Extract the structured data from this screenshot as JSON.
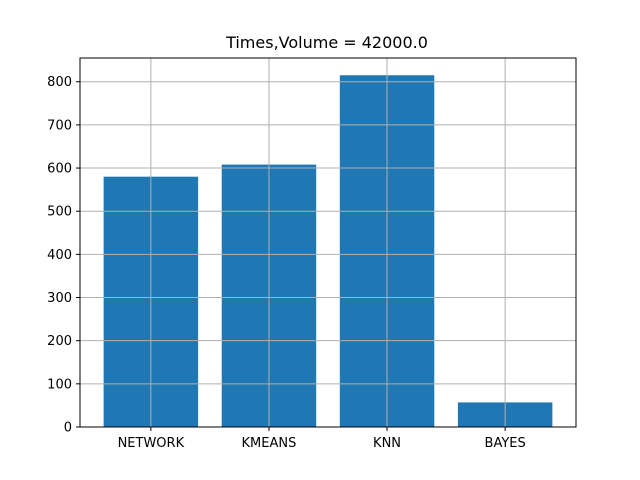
{
  "chart_data": {
    "type": "bar",
    "title": "Times,Volume = 42000.0",
    "xlabel": "",
    "ylabel": "",
    "categories": [
      "NETWORK",
      "KMEANS",
      "KNN",
      "BAYES"
    ],
    "values": [
      580,
      608,
      815,
      57
    ],
    "ylim": [
      0,
      855
    ],
    "yticks": [
      0,
      100,
      200,
      300,
      400,
      500,
      600,
      700,
      800
    ],
    "ytick_labels": [
      "0",
      "100",
      "200",
      "300",
      "400",
      "500",
      "600",
      "700",
      "800"
    ],
    "grid": true,
    "bar_color": "#1f77b4"
  }
}
